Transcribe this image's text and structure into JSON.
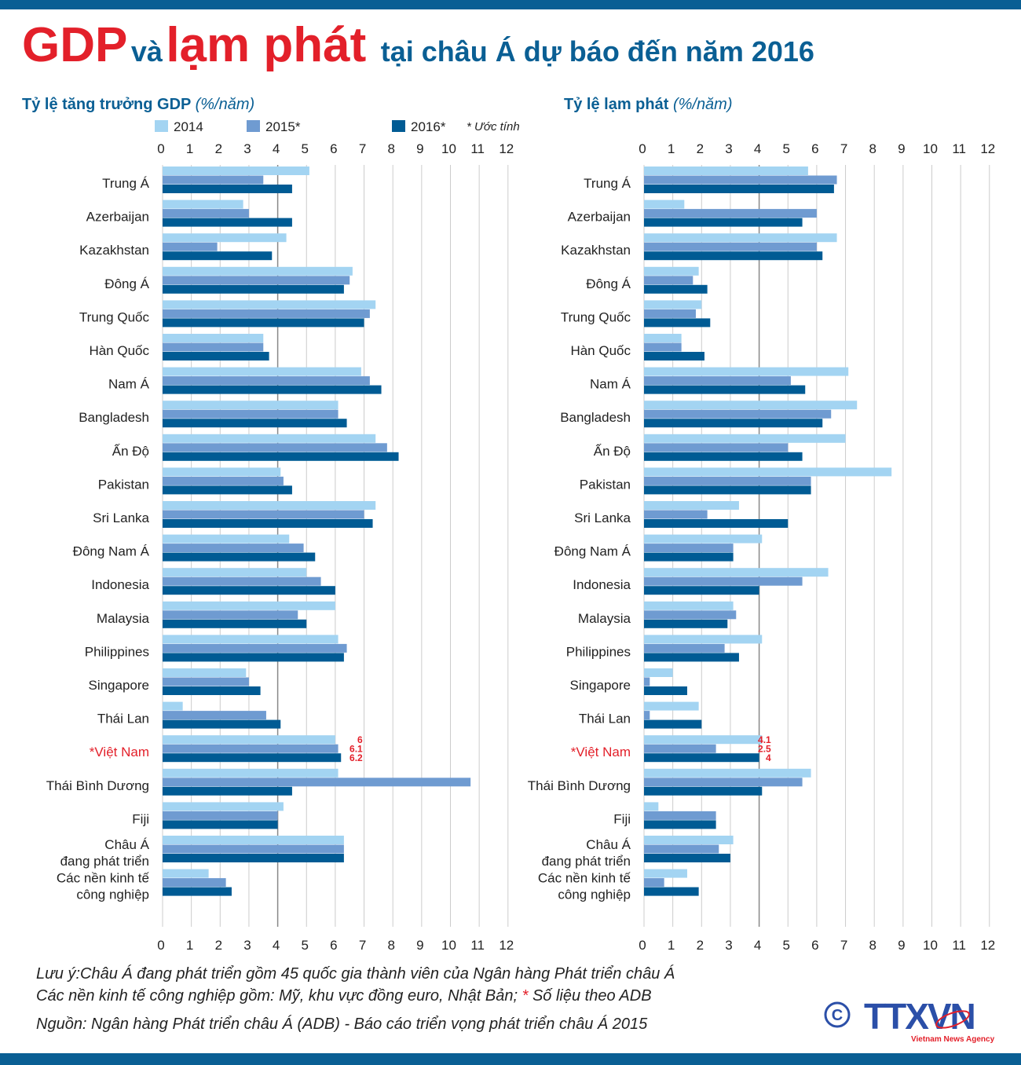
{
  "header": {
    "title_part1": "GDP",
    "title_part2": "và",
    "title_part3": "lạm phát",
    "title_part4": "tại châu Á dự báo đến năm 2016"
  },
  "legend": {
    "items": [
      "2014",
      "2015*",
      "2016*"
    ],
    "note": "* Ước tính",
    "colors": [
      "#a3d4f2",
      "#6f9bd1",
      "#005b94"
    ]
  },
  "chart_data": [
    {
      "type": "bar",
      "orientation": "horizontal",
      "title": "Tỷ lệ tăng trưởng GDP",
      "unit": "(%/năm)",
      "xlim": [
        0,
        12
      ],
      "ticks": [
        "0",
        "1",
        "2",
        "3",
        "4",
        "5",
        "6",
        "7",
        "8",
        "9",
        "10",
        "11",
        "12"
      ],
      "grid": true,
      "categories": [
        "Trung Á",
        "Azerbaijan",
        "Kazakhstan",
        "Đông Á",
        "Trung Quốc",
        "Hàn Quốc",
        "Nam Á",
        "Bangladesh",
        "Ấn Độ",
        "Pakistan",
        "Sri Lanka",
        "Đông Nam Á",
        "Indonesia",
        "Malaysia",
        "Philippines",
        "Singapore",
        "Thái Lan",
        "*Việt Nam",
        "Thái Bình Dương",
        "Fiji",
        "Châu Á\nđang phát triển",
        "Các nền kinh tế\ncông nghiệp"
      ],
      "series": [
        {
          "name": "2014",
          "values": [
            5.1,
            2.8,
            4.3,
            6.6,
            7.4,
            3.5,
            6.9,
            6.1,
            7.4,
            4.1,
            7.4,
            4.4,
            5.0,
            6.0,
            6.1,
            2.9,
            0.7,
            6,
            6.1,
            4.2,
            6.3,
            1.6
          ]
        },
        {
          "name": "2015*",
          "values": [
            3.5,
            3.0,
            1.9,
            6.5,
            7.2,
            3.5,
            7.2,
            6.1,
            7.8,
            4.2,
            7.0,
            4.9,
            5.5,
            4.7,
            6.4,
            3.0,
            3.6,
            6.1,
            10.7,
            4.0,
            6.3,
            2.2
          ]
        },
        {
          "name": "2016*",
          "values": [
            4.5,
            4.5,
            3.8,
            6.3,
            7.0,
            3.7,
            7.6,
            6.4,
            8.2,
            4.5,
            7.3,
            5.3,
            6.0,
            5.0,
            6.3,
            3.4,
            4.1,
            6.2,
            4.5,
            4.0,
            6.3,
            2.4
          ]
        }
      ],
      "highlight_labels": [
        "6",
        "6.1",
        "6.2"
      ]
    },
    {
      "type": "bar",
      "orientation": "horizontal",
      "title": "Tỷ lệ lạm phát",
      "unit": "(%/năm)",
      "xlim": [
        0,
        12
      ],
      "ticks": [
        "0",
        "1",
        "2",
        "3",
        "4",
        "5",
        "6",
        "7",
        "8",
        "9",
        "10",
        "11",
        "12"
      ],
      "grid": true,
      "categories": [
        "Trung Á",
        "Azerbaijan",
        "Kazakhstan",
        "Đông Á",
        "Trung Quốc",
        "Hàn Quốc",
        "Nam Á",
        "Bangladesh",
        "Ấn Độ",
        "Pakistan",
        "Sri Lanka",
        "Đông Nam Á",
        "Indonesia",
        "Malaysia",
        "Philippines",
        "Singapore",
        "Thái Lan",
        "*Việt Nam",
        "Thái Bình Dương",
        "Fiji",
        "Châu Á\nđang phát triển",
        "Các nền kinh tế\ncông nghiệp"
      ],
      "series": [
        {
          "name": "2014",
          "values": [
            5.7,
            1.4,
            6.7,
            1.9,
            2.0,
            1.3,
            7.1,
            7.4,
            7.0,
            8.6,
            3.3,
            4.1,
            6.4,
            3.1,
            4.1,
            1.0,
            1.9,
            4.1,
            5.8,
            0.5,
            3.1,
            1.5
          ]
        },
        {
          "name": "2015*",
          "values": [
            6.7,
            6.0,
            6.0,
            1.7,
            1.8,
            1.3,
            5.1,
            6.5,
            5.0,
            5.8,
            2.2,
            3.1,
            5.5,
            3.2,
            2.8,
            0.2,
            0.2,
            2.5,
            5.5,
            2.5,
            2.6,
            0.7
          ]
        },
        {
          "name": "2016*",
          "values": [
            6.6,
            5.5,
            6.2,
            2.2,
            2.3,
            2.1,
            5.6,
            6.2,
            5.5,
            5.8,
            5.0,
            3.1,
            4.0,
            2.9,
            3.3,
            1.5,
            2.0,
            4,
            4.1,
            2.5,
            3.0,
            1.9
          ]
        }
      ],
      "highlight_labels": [
        "4.1",
        "2.5",
        "4"
      ]
    }
  ],
  "colors": {
    "title_red": "#e3202a",
    "title_blue": "#0a5f94",
    "highlight": "#e3202a"
  },
  "footer": {
    "note1": "Lưu ý:Châu Á đang phát triển gồm 45 quốc gia thành viên của Ngân hàng Phát triển châu Á",
    "note2": "Các nền kinh tế công nghiệp gồm: Mỹ, khu vực đồng euro, Nhật Bản;",
    "note2_star": "*",
    "note2_tail": "Số liệu theo ADB",
    "source": "Nguồn: Ngân hàng Phát triển châu Á (ADB) -  Báo cáo triển vọng phát triển châu Á 2015",
    "logo_text": "TTXVN",
    "logo_sub": "Vietnam News Agency",
    "copyright": "C"
  }
}
